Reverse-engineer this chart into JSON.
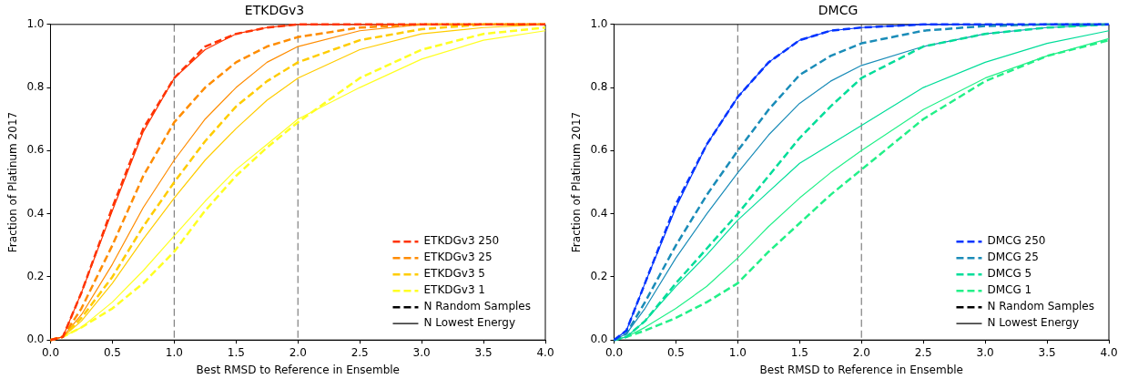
{
  "chart_data": [
    {
      "type": "line",
      "title": "ETKDGv3",
      "xlabel": "Best RMSD to Reference in Ensemble",
      "ylabel": "Fraction of Platinum 2017",
      "legend": "bottom right",
      "grid": false,
      "x": [
        0,
        0.1,
        0.25,
        0.5,
        0.75,
        1,
        1.25,
        1.5,
        1.75,
        2,
        2.5,
        3,
        3.5,
        4
      ],
      "xlim": [
        0,
        4
      ],
      "ylim": [
        0,
        1
      ],
      "xticks": [
        {
          "value": 0,
          "label": "0.0"
        },
        {
          "value": 0.5,
          "label": "0.5"
        },
        {
          "value": 1,
          "label": "1.0"
        },
        {
          "value": 1.5,
          "label": "1.5"
        },
        {
          "value": 2,
          "label": "2.0"
        },
        {
          "value": 2.5,
          "label": "2.5"
        },
        {
          "value": 3,
          "label": "3.0"
        },
        {
          "value": 3.5,
          "label": "3.5"
        },
        {
          "value": 4,
          "label": "4.0"
        }
      ],
      "yticks": [
        {
          "value": 0,
          "label": "0.0"
        },
        {
          "value": 0.2,
          "label": "0.2"
        },
        {
          "value": 0.4,
          "label": "0.4"
        },
        {
          "value": 0.6,
          "label": "0.6"
        },
        {
          "value": 0.8,
          "label": "0.8"
        },
        {
          "value": 1,
          "label": "1.0"
        }
      ],
      "ref_lines": [
        {
          "axis": "x",
          "value": 1,
          "color": "#808080",
          "line_style": "dashed"
        },
        {
          "axis": "x",
          "value": 2,
          "color": "#808080",
          "line_style": "dashed"
        }
      ],
      "series": [
        {
          "name": "ETKDGv3 250",
          "color": "#ff3300",
          "line_style": "dashed",
          "values": [
            0,
            0.01,
            0.15,
            0.42,
            0.67,
            0.83,
            0.93,
            0.97,
            0.99,
            1,
            1,
            1,
            1,
            1
          ]
        },
        {
          "name": "ETKDGv3 25",
          "color": "#ff8c00",
          "line_style": "dashed",
          "values": [
            0,
            0.01,
            0.1,
            0.3,
            0.52,
            0.69,
            0.8,
            0.88,
            0.93,
            0.96,
            0.99,
            1,
            1,
            1
          ]
        },
        {
          "name": "ETKDGv3 5",
          "color": "#ffcc00",
          "line_style": "dashed",
          "values": [
            0,
            0.01,
            0.07,
            0.2,
            0.36,
            0.5,
            0.63,
            0.74,
            0.82,
            0.88,
            0.95,
            0.985,
            1,
            1
          ]
        },
        {
          "name": "ETKDGv3 1",
          "color": "#ffff22",
          "line_style": "dashed",
          "values": [
            0,
            0.01,
            0.04,
            0.1,
            0.18,
            0.28,
            0.41,
            0.52,
            0.61,
            0.69,
            0.83,
            0.92,
            0.97,
            0.99
          ]
        },
        {
          "name": "N Random Samples",
          "color": "#000000",
          "line_style": "dashed",
          "values": [
            null,
            null,
            null,
            null,
            null,
            null,
            null,
            null,
            null,
            null,
            null,
            null,
            null,
            null
          ]
        },
        {
          "name": "N Lowest Energy",
          "color": "#000000",
          "line_style": "solid",
          "values": [
            null,
            null,
            null,
            null,
            null,
            null,
            null,
            null,
            null,
            null,
            null,
            null,
            null,
            null
          ]
        },
        {
          "color": "#ff3300",
          "line_style": "solid",
          "values": [
            0,
            0.01,
            0.15,
            0.41,
            0.66,
            0.83,
            0.92,
            0.97,
            0.99,
            1,
            1,
            1,
            1,
            1
          ]
        },
        {
          "color": "#ff8c00",
          "line_style": "solid",
          "values": [
            0,
            0.01,
            0.08,
            0.24,
            0.42,
            0.57,
            0.7,
            0.8,
            0.88,
            0.93,
            0.98,
            1,
            1,
            1
          ]
        },
        {
          "color": "#ffcc00",
          "line_style": "solid",
          "values": [
            0,
            0.01,
            0.06,
            0.18,
            0.32,
            0.45,
            0.57,
            0.67,
            0.76,
            0.83,
            0.92,
            0.97,
            0.99,
            1
          ]
        },
        {
          "color": "#ffff22",
          "line_style": "solid",
          "values": [
            0,
            0.01,
            0.04,
            0.12,
            0.22,
            0.33,
            0.44,
            0.54,
            0.62,
            0.7,
            0.8,
            0.89,
            0.95,
            0.98
          ]
        }
      ]
    },
    {
      "type": "line",
      "title": "DMCG",
      "xlabel": "Best RMSD to Reference in Ensemble",
      "ylabel": "Fraction of Platinum 2017",
      "legend": "bottom right",
      "grid": false,
      "x": [
        0,
        0.1,
        0.25,
        0.5,
        0.75,
        1,
        1.25,
        1.5,
        1.75,
        2,
        2.5,
        3,
        3.5,
        4
      ],
      "xlim": [
        0,
        4
      ],
      "ylim": [
        0,
        1
      ],
      "xticks": [
        {
          "value": 0,
          "label": "0.0"
        },
        {
          "value": 0.5,
          "label": "0.5"
        },
        {
          "value": 1,
          "label": "1.0"
        },
        {
          "value": 1.5,
          "label": "1.5"
        },
        {
          "value": 2,
          "label": "2.0"
        },
        {
          "value": 2.5,
          "label": "2.5"
        },
        {
          "value": 3,
          "label": "3.0"
        },
        {
          "value": 3.5,
          "label": "3.5"
        },
        {
          "value": 4,
          "label": "4.0"
        }
      ],
      "yticks": [
        {
          "value": 0,
          "label": "0.0"
        },
        {
          "value": 0.2,
          "label": "0.2"
        },
        {
          "value": 0.4,
          "label": "0.4"
        },
        {
          "value": 0.6,
          "label": "0.6"
        },
        {
          "value": 0.8,
          "label": "0.8"
        },
        {
          "value": 1,
          "label": "1.0"
        }
      ],
      "ref_lines": [
        {
          "axis": "x",
          "value": 1,
          "color": "#808080",
          "line_style": "dashed"
        },
        {
          "axis": "x",
          "value": 2,
          "color": "#808080",
          "line_style": "dashed"
        }
      ],
      "series": [
        {
          "name": "DMCG 250",
          "color": "#0033ff",
          "line_style": "dashed",
          "values": [
            0,
            0.03,
            0.18,
            0.43,
            0.62,
            0.77,
            0.88,
            0.95,
            0.98,
            0.99,
            1,
            1,
            1,
            1
          ]
        },
        {
          "name": "DMCG 25",
          "color": "#1a8cb8",
          "line_style": "dashed",
          "values": [
            0,
            0.02,
            0.12,
            0.3,
            0.46,
            0.6,
            0.73,
            0.84,
            0.9,
            0.94,
            0.98,
            0.995,
            1,
            1
          ]
        },
        {
          "name": "DMCG 5",
          "color": "#00dd99",
          "line_style": "dashed",
          "values": [
            0,
            0.01,
            0.06,
            0.18,
            0.29,
            0.4,
            0.52,
            0.64,
            0.74,
            0.83,
            0.93,
            0.97,
            0.99,
            1
          ]
        },
        {
          "name": "DMCG 1",
          "color": "#22f088",
          "line_style": "dashed",
          "values": [
            0,
            0.01,
            0.03,
            0.07,
            0.12,
            0.18,
            0.28,
            0.37,
            0.46,
            0.54,
            0.7,
            0.82,
            0.9,
            0.95
          ]
        },
        {
          "name": "N Random Samples",
          "color": "#000000",
          "line_style": "dashed",
          "values": [
            null,
            null,
            null,
            null,
            null,
            null,
            null,
            null,
            null,
            null,
            null,
            null,
            null,
            null
          ]
        },
        {
          "name": "N Lowest Energy",
          "color": "#000000",
          "line_style": "solid",
          "values": [
            null,
            null,
            null,
            null,
            null,
            null,
            null,
            null,
            null,
            null,
            null,
            null,
            null,
            null
          ]
        },
        {
          "color": "#0033ff",
          "line_style": "solid",
          "values": [
            0,
            0.03,
            0.18,
            0.42,
            0.62,
            0.77,
            0.88,
            0.95,
            0.98,
            0.99,
            1,
            1,
            1,
            1
          ]
        },
        {
          "color": "#1a8cb8",
          "line_style": "solid",
          "values": [
            0,
            0.02,
            0.1,
            0.26,
            0.4,
            0.53,
            0.65,
            0.75,
            0.82,
            0.87,
            0.93,
            0.97,
            0.99,
            1
          ]
        },
        {
          "color": "#00dd99",
          "line_style": "solid",
          "values": [
            0,
            0.01,
            0.06,
            0.17,
            0.27,
            0.38,
            0.47,
            0.56,
            0.62,
            0.68,
            0.8,
            0.88,
            0.94,
            0.98
          ]
        },
        {
          "color": "#22f088",
          "line_style": "solid",
          "values": [
            0,
            0.01,
            0.04,
            0.1,
            0.17,
            0.26,
            0.36,
            0.45,
            0.53,
            0.6,
            0.73,
            0.83,
            0.9,
            0.955
          ]
        }
      ]
    }
  ]
}
